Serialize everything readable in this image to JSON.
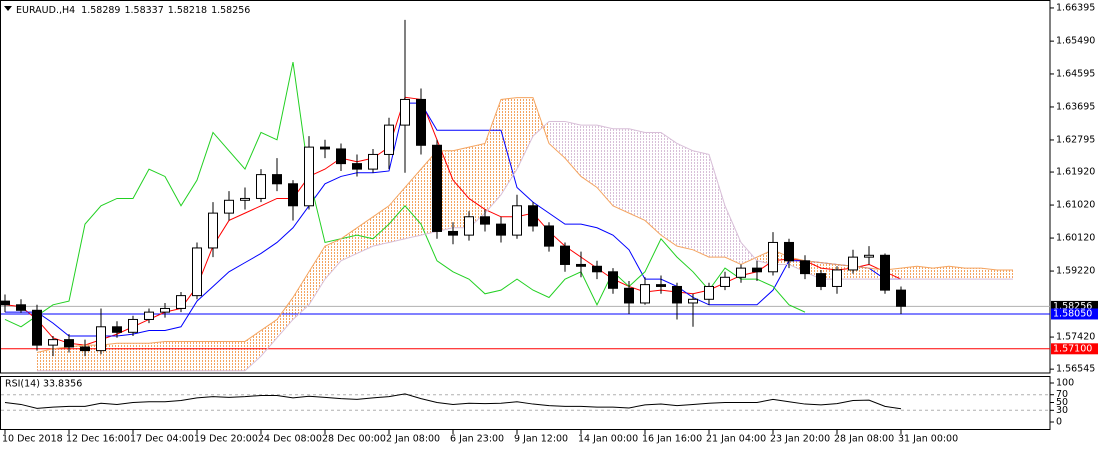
{
  "header": {
    "symbol": "EURAUD.,H4",
    "ohlc": [
      1.58289,
      1.58337,
      1.58218,
      1.58256
    ]
  },
  "chart_data": [
    {
      "type": "candlestick",
      "categories": [
        "10 Dec 2018",
        null,
        null,
        null,
        "12 Dec 16:00",
        null,
        null,
        null,
        "17 Dec 04:00",
        null,
        null,
        null,
        "19 Dec 20:00",
        null,
        null,
        null,
        "24 Dec 08:00",
        null,
        null,
        null,
        "28 Dec 00:00",
        null,
        null,
        null,
        "2 Jan 08:00",
        null,
        null,
        null,
        "6 Jan 23:00",
        null,
        null,
        null,
        "9 Jan 12:00",
        null,
        null,
        null,
        "14 Jan 00:00",
        null,
        null,
        null,
        "16 Jan 16:00",
        null,
        null,
        null,
        "21 Jan 04:00",
        null,
        null,
        null,
        "23 Jan 20:00",
        null,
        null,
        null,
        "28 Jan 08:00",
        null,
        null,
        null,
        "31 Jan 00:00",
        null,
        null,
        null,
        null,
        null,
        null,
        null
      ],
      "open": [
        1.584,
        1.583,
        1.5815,
        1.572,
        1.5735,
        1.5715,
        1.5705,
        1.577,
        1.5755,
        1.579,
        1.581,
        1.582,
        1.5855,
        1.5985,
        1.608,
        1.6115,
        1.612,
        1.6185,
        1.616,
        1.61,
        1.626,
        1.6255,
        1.6215,
        1.62,
        1.624,
        1.632,
        1.639,
        1.6265,
        1.603,
        1.602,
        1.607,
        1.605,
        1.602,
        1.61,
        1.6045,
        1.599,
        1.594,
        1.5935,
        1.592,
        1.5875,
        1.5835,
        1.5885,
        1.588,
        1.5835,
        1.5845,
        1.588,
        1.5905,
        1.593,
        1.592,
        1.6,
        1.595,
        1.5915,
        1.588,
        1.5925,
        1.596,
        1.5965,
        1.587,
        null,
        null,
        null,
        null,
        null,
        null,
        null
      ],
      "high": [
        1.5858,
        1.5845,
        1.583,
        1.5745,
        1.575,
        1.5735,
        1.582,
        1.5785,
        1.58,
        1.582,
        1.5835,
        1.5865,
        1.6,
        1.611,
        1.614,
        1.615,
        1.62,
        1.623,
        1.617,
        1.629,
        1.628,
        1.627,
        1.624,
        1.6255,
        1.634,
        1.6607,
        1.642,
        1.628,
        1.6055,
        1.6085,
        1.609,
        1.607,
        1.613,
        1.611,
        1.6055,
        1.6,
        1.5975,
        1.595,
        1.593,
        1.5895,
        1.5905,
        1.591,
        1.589,
        1.586,
        1.589,
        1.592,
        1.594,
        1.595,
        1.6028,
        1.601,
        1.5965,
        1.5925,
        1.5935,
        1.598,
        1.599,
        1.597,
        1.588,
        null,
        null,
        null,
        null,
        null,
        null,
        null
      ],
      "low": [
        1.581,
        1.5808,
        1.5705,
        1.569,
        1.57,
        1.569,
        1.5695,
        1.574,
        1.5745,
        1.578,
        1.5795,
        1.581,
        1.5845,
        1.596,
        1.606,
        1.609,
        1.611,
        1.614,
        1.606,
        1.609,
        1.623,
        1.6195,
        1.618,
        1.619,
        1.62,
        1.619,
        1.624,
        1.601,
        1.5995,
        1.6005,
        1.603,
        1.6,
        1.601,
        1.603,
        1.5975,
        1.592,
        1.5905,
        1.59,
        1.586,
        1.5805,
        1.583,
        1.586,
        1.579,
        1.577,
        1.583,
        1.587,
        1.589,
        1.5895,
        1.591,
        1.593,
        1.59,
        1.587,
        1.586,
        1.5915,
        1.594,
        1.586,
        1.5805,
        null,
        null,
        null,
        null,
        null,
        null,
        null
      ],
      "close": [
        1.583,
        1.5815,
        1.572,
        1.5735,
        1.5715,
        1.5705,
        1.577,
        1.5755,
        1.579,
        1.581,
        1.582,
        1.5855,
        1.5985,
        1.608,
        1.6115,
        1.612,
        1.6185,
        1.616,
        1.61,
        1.626,
        1.6255,
        1.6215,
        1.62,
        1.624,
        1.632,
        1.639,
        1.6265,
        1.603,
        1.602,
        1.607,
        1.605,
        1.602,
        1.61,
        1.6045,
        1.599,
        1.594,
        1.5935,
        1.592,
        1.5875,
        1.5835,
        1.5885,
        1.588,
        1.5835,
        1.5845,
        1.588,
        1.5905,
        1.593,
        1.592,
        1.6,
        1.595,
        1.5915,
        1.588,
        1.5925,
        1.596,
        1.5965,
        1.587,
        1.5826,
        null,
        null,
        null,
        null,
        null,
        null,
        null
      ],
      "up_color": "#ffffff",
      "down_color": "#000000",
      "wick_color": "#000000",
      "series": [
        {
          "color": "#ff0000",
          "values": [
            1.583,
            1.5825,
            1.579,
            1.574,
            1.5725,
            1.572,
            1.5735,
            1.575,
            1.577,
            1.579,
            1.581,
            1.582,
            1.588,
            1.599,
            1.606,
            1.608,
            1.61,
            1.612,
            1.612,
            1.618,
            1.62,
            1.623,
            1.622,
            1.623,
            1.626,
            1.6396,
            1.639,
            1.628,
            1.617,
            1.612,
            1.609,
            1.607,
            1.607,
            1.608,
            1.603,
            1.599,
            1.596,
            1.593,
            1.59,
            1.588,
            1.5865,
            1.587,
            1.5865,
            1.586,
            1.587,
            1.589,
            1.591,
            1.592,
            1.595,
            1.5955,
            1.595,
            1.593,
            1.5925,
            1.593,
            1.594,
            1.592,
            1.59,
            null,
            null,
            null,
            null,
            null,
            null,
            null
          ]
        },
        {
          "color": "#0000ff",
          "values": [
            1.581,
            1.581,
            1.581,
            1.578,
            1.5745,
            1.5745,
            1.5745,
            1.5745,
            1.575,
            1.576,
            1.576,
            1.577,
            1.584,
            1.588,
            1.592,
            1.5945,
            1.597,
            1.6,
            1.604,
            1.61,
            1.616,
            1.618,
            1.619,
            1.619,
            1.6195,
            1.638,
            1.638,
            1.6306,
            1.6306,
            1.6306,
            1.6306,
            1.6306,
            1.615,
            1.611,
            1.608,
            1.605,
            1.605,
            1.604,
            1.602,
            1.598,
            1.59,
            1.59,
            1.588,
            1.585,
            1.583,
            1.583,
            1.583,
            1.583,
            1.587,
            1.595,
            1.595,
            1.5945,
            1.594,
            1.5935,
            1.593,
            1.59,
            1.59,
            null,
            null,
            null,
            null,
            null,
            null,
            null
          ]
        },
        {
          "color": "#22d022",
          "values": [
            1.579,
            1.577,
            1.58,
            1.583,
            1.584,
            1.605,
            1.61,
            1.612,
            1.612,
            1.62,
            1.618,
            1.61,
            1.617,
            1.63,
            1.625,
            1.62,
            1.63,
            1.628,
            1.6492,
            1.618,
            1.6,
            1.601,
            1.602,
            1.601,
            1.605,
            1.61,
            1.605,
            1.595,
            1.592,
            1.59,
            1.586,
            1.587,
            1.59,
            1.587,
            1.585,
            1.59,
            1.592,
            1.583,
            1.592,
            1.588,
            1.592,
            1.601,
            1.596,
            1.592,
            1.587,
            1.593,
            1.59,
            1.59,
            1.588,
            1.583,
            1.581,
            null,
            null,
            null,
            null,
            null,
            null,
            null,
            null,
            null,
            null,
            null,
            null,
            null
          ]
        },
        {
          "color": "#f4a460",
          "values": [
            null,
            null,
            1.57,
            1.571,
            1.5715,
            1.572,
            1.572,
            1.5725,
            1.5725,
            1.5725,
            1.573,
            1.573,
            1.573,
            1.573,
            1.573,
            1.573,
            1.576,
            1.579,
            1.585,
            1.592,
            1.599,
            1.601,
            1.604,
            1.607,
            1.61,
            1.615,
            1.62,
            1.625,
            1.625,
            1.626,
            1.627,
            1.639,
            1.6395,
            1.6395,
            1.627,
            1.623,
            1.618,
            1.615,
            1.61,
            1.608,
            1.606,
            1.602,
            1.599,
            1.598,
            1.596,
            1.596,
            1.594,
            1.596,
            1.598,
            1.596,
            1.595,
            1.5945,
            1.594,
            1.5935,
            1.593,
            1.5925,
            1.593,
            1.5935,
            1.593,
            1.5935,
            1.593,
            1.593,
            1.5925,
            1.5925
          ]
        },
        {
          "color": "#d8bfd8",
          "values": [
            null,
            null,
            1.565,
            1.565,
            1.565,
            1.565,
            1.565,
            1.565,
            1.565,
            1.565,
            1.565,
            1.565,
            1.565,
            1.565,
            1.565,
            1.565,
            1.569,
            1.574,
            1.579,
            1.583,
            1.59,
            1.595,
            1.597,
            1.599,
            1.6,
            1.601,
            1.602,
            1.603,
            1.604,
            1.604,
            1.608,
            1.613,
            1.62,
            1.629,
            1.633,
            1.633,
            1.632,
            1.632,
            1.631,
            1.631,
            1.63,
            1.63,
            1.627,
            1.625,
            1.624,
            1.61,
            1.6,
            1.595,
            1.594,
            1.594,
            1.592,
            1.59,
            1.59,
            1.59,
            1.59,
            1.59,
            1.59,
            1.59,
            1.59,
            1.59,
            1.59,
            1.59,
            1.59,
            1.59
          ]
        }
      ],
      "cloud": true,
      "ylim": [
        1.5644,
        1.6653
      ],
      "yticks": [
        1.66395,
        {
          "value": 1.6549,
          "label": "1.65490"
        },
        1.64595,
        1.63695,
        1.62795,
        {
          "value": 1.6192,
          "label": "1.61920"
        },
        {
          "value": 1.6102,
          "label": "1.61020"
        },
        {
          "value": 1.6012,
          "label": "1.60120"
        },
        {
          "value": 1.5922,
          "label": "1.59220"
        },
        {
          "value": 1.5742,
          "label": "1.57420"
        },
        1.56545
      ],
      "price_lines": [
        {
          "value": 1.58256,
          "label": "1.58256",
          "color": "#000000",
          "line_color": "#b0b0b0"
        },
        {
          "value": 1.5805,
          "label": "1.58050",
          "color": "#0000ff",
          "line_color": "#0000ff"
        },
        {
          "value": 1.571,
          "label": "1.57100",
          "color": "#ff0000",
          "line_color": "#ff0000"
        }
      ]
    },
    {
      "type": "line",
      "title": "RSI(14) 33.8356",
      "color": "#000000",
      "values": [
        50,
        45,
        35,
        38,
        40,
        40,
        48,
        45,
        50,
        52,
        52,
        55,
        62,
        65,
        63,
        65,
        68,
        68,
        62,
        66,
        63,
        60,
        58,
        62,
        65,
        72,
        60,
        50,
        45,
        48,
        47,
        48,
        52,
        46,
        42,
        40,
        40,
        38,
        38,
        36,
        44,
        46,
        42,
        45,
        48,
        50,
        50,
        50,
        58,
        52,
        46,
        44,
        47,
        55,
        56,
        40,
        34
      ],
      "ylim": [
        0,
        100
      ],
      "yticks": [
        100,
        70,
        50,
        30,
        0
      ],
      "levels": [
        70,
        30
      ]
    }
  ]
}
